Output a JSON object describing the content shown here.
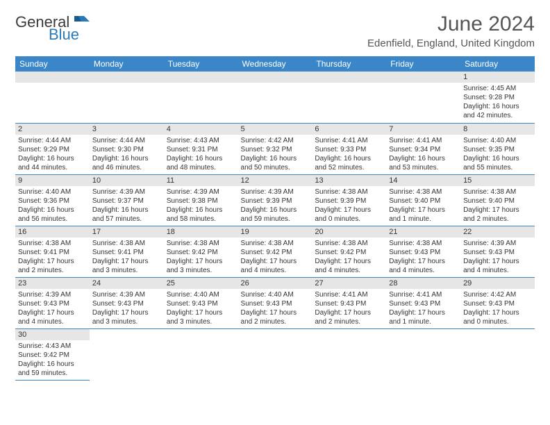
{
  "logo": {
    "text1": "General",
    "text2": "Blue"
  },
  "title": "June 2024",
  "location": "Edenfield, England, United Kingdom",
  "headers": [
    "Sunday",
    "Monday",
    "Tuesday",
    "Wednesday",
    "Thursday",
    "Friday",
    "Saturday"
  ],
  "colors": {
    "header_bg": "#3a86c8",
    "header_fg": "#ffffff",
    "daynum_bg": "#e6e6e6",
    "border": "#3a86c8",
    "logo_blue": "#2a7ab8"
  },
  "weeks": [
    [
      null,
      null,
      null,
      null,
      null,
      null,
      {
        "n": "1",
        "sr": "Sunrise: 4:45 AM",
        "ss": "Sunset: 9:28 PM",
        "d1": "Daylight: 16 hours",
        "d2": "and 42 minutes."
      }
    ],
    [
      {
        "n": "2",
        "sr": "Sunrise: 4:44 AM",
        "ss": "Sunset: 9:29 PM",
        "d1": "Daylight: 16 hours",
        "d2": "and 44 minutes."
      },
      {
        "n": "3",
        "sr": "Sunrise: 4:44 AM",
        "ss": "Sunset: 9:30 PM",
        "d1": "Daylight: 16 hours",
        "d2": "and 46 minutes."
      },
      {
        "n": "4",
        "sr": "Sunrise: 4:43 AM",
        "ss": "Sunset: 9:31 PM",
        "d1": "Daylight: 16 hours",
        "d2": "and 48 minutes."
      },
      {
        "n": "5",
        "sr": "Sunrise: 4:42 AM",
        "ss": "Sunset: 9:32 PM",
        "d1": "Daylight: 16 hours",
        "d2": "and 50 minutes."
      },
      {
        "n": "6",
        "sr": "Sunrise: 4:41 AM",
        "ss": "Sunset: 9:33 PM",
        "d1": "Daylight: 16 hours",
        "d2": "and 52 minutes."
      },
      {
        "n": "7",
        "sr": "Sunrise: 4:41 AM",
        "ss": "Sunset: 9:34 PM",
        "d1": "Daylight: 16 hours",
        "d2": "and 53 minutes."
      },
      {
        "n": "8",
        "sr": "Sunrise: 4:40 AM",
        "ss": "Sunset: 9:35 PM",
        "d1": "Daylight: 16 hours",
        "d2": "and 55 minutes."
      }
    ],
    [
      {
        "n": "9",
        "sr": "Sunrise: 4:40 AM",
        "ss": "Sunset: 9:36 PM",
        "d1": "Daylight: 16 hours",
        "d2": "and 56 minutes."
      },
      {
        "n": "10",
        "sr": "Sunrise: 4:39 AM",
        "ss": "Sunset: 9:37 PM",
        "d1": "Daylight: 16 hours",
        "d2": "and 57 minutes."
      },
      {
        "n": "11",
        "sr": "Sunrise: 4:39 AM",
        "ss": "Sunset: 9:38 PM",
        "d1": "Daylight: 16 hours",
        "d2": "and 58 minutes."
      },
      {
        "n": "12",
        "sr": "Sunrise: 4:39 AM",
        "ss": "Sunset: 9:39 PM",
        "d1": "Daylight: 16 hours",
        "d2": "and 59 minutes."
      },
      {
        "n": "13",
        "sr": "Sunrise: 4:38 AM",
        "ss": "Sunset: 9:39 PM",
        "d1": "Daylight: 17 hours",
        "d2": "and 0 minutes."
      },
      {
        "n": "14",
        "sr": "Sunrise: 4:38 AM",
        "ss": "Sunset: 9:40 PM",
        "d1": "Daylight: 17 hours",
        "d2": "and 1 minute."
      },
      {
        "n": "15",
        "sr": "Sunrise: 4:38 AM",
        "ss": "Sunset: 9:40 PM",
        "d1": "Daylight: 17 hours",
        "d2": "and 2 minutes."
      }
    ],
    [
      {
        "n": "16",
        "sr": "Sunrise: 4:38 AM",
        "ss": "Sunset: 9:41 PM",
        "d1": "Daylight: 17 hours",
        "d2": "and 2 minutes."
      },
      {
        "n": "17",
        "sr": "Sunrise: 4:38 AM",
        "ss": "Sunset: 9:41 PM",
        "d1": "Daylight: 17 hours",
        "d2": "and 3 minutes."
      },
      {
        "n": "18",
        "sr": "Sunrise: 4:38 AM",
        "ss": "Sunset: 9:42 PM",
        "d1": "Daylight: 17 hours",
        "d2": "and 3 minutes."
      },
      {
        "n": "19",
        "sr": "Sunrise: 4:38 AM",
        "ss": "Sunset: 9:42 PM",
        "d1": "Daylight: 17 hours",
        "d2": "and 4 minutes."
      },
      {
        "n": "20",
        "sr": "Sunrise: 4:38 AM",
        "ss": "Sunset: 9:42 PM",
        "d1": "Daylight: 17 hours",
        "d2": "and 4 minutes."
      },
      {
        "n": "21",
        "sr": "Sunrise: 4:38 AM",
        "ss": "Sunset: 9:43 PM",
        "d1": "Daylight: 17 hours",
        "d2": "and 4 minutes."
      },
      {
        "n": "22",
        "sr": "Sunrise: 4:39 AM",
        "ss": "Sunset: 9:43 PM",
        "d1": "Daylight: 17 hours",
        "d2": "and 4 minutes."
      }
    ],
    [
      {
        "n": "23",
        "sr": "Sunrise: 4:39 AM",
        "ss": "Sunset: 9:43 PM",
        "d1": "Daylight: 17 hours",
        "d2": "and 4 minutes."
      },
      {
        "n": "24",
        "sr": "Sunrise: 4:39 AM",
        "ss": "Sunset: 9:43 PM",
        "d1": "Daylight: 17 hours",
        "d2": "and 3 minutes."
      },
      {
        "n": "25",
        "sr": "Sunrise: 4:40 AM",
        "ss": "Sunset: 9:43 PM",
        "d1": "Daylight: 17 hours",
        "d2": "and 3 minutes."
      },
      {
        "n": "26",
        "sr": "Sunrise: 4:40 AM",
        "ss": "Sunset: 9:43 PM",
        "d1": "Daylight: 17 hours",
        "d2": "and 2 minutes."
      },
      {
        "n": "27",
        "sr": "Sunrise: 4:41 AM",
        "ss": "Sunset: 9:43 PM",
        "d1": "Daylight: 17 hours",
        "d2": "and 2 minutes."
      },
      {
        "n": "28",
        "sr": "Sunrise: 4:41 AM",
        "ss": "Sunset: 9:43 PM",
        "d1": "Daylight: 17 hours",
        "d2": "and 1 minute."
      },
      {
        "n": "29",
        "sr": "Sunrise: 4:42 AM",
        "ss": "Sunset: 9:43 PM",
        "d1": "Daylight: 17 hours",
        "d2": "and 0 minutes."
      }
    ],
    [
      {
        "n": "30",
        "sr": "Sunrise: 4:43 AM",
        "ss": "Sunset: 9:42 PM",
        "d1": "Daylight: 16 hours",
        "d2": "and 59 minutes."
      },
      null,
      null,
      null,
      null,
      null,
      null
    ]
  ]
}
